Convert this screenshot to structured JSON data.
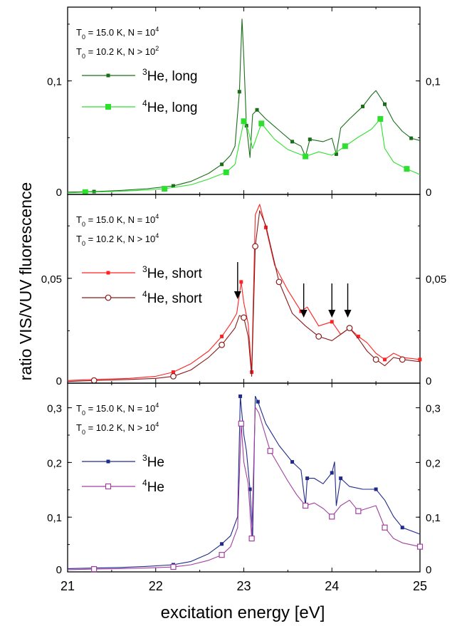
{
  "figure": {
    "ylabel": "ratio VIS/VUV fluorescence",
    "xlabel": "excitation energy [eV]"
  },
  "chart_data": [
    {
      "type": "line",
      "panel": "top",
      "xlim": [
        21,
        25
      ],
      "ylim": [
        0,
        0.165
      ],
      "yticks": [
        0,
        0.1
      ],
      "yticklabels": [
        "0",
        "0,1"
      ],
      "info_lines": [
        "T0 = 15.0 K, N = 10^4",
        "T0 = 10.2 K, N > 10^2"
      ],
      "series": [
        {
          "name": "3He, long",
          "color": "#1a6e1a",
          "marker": "small-square",
          "x": [
            21.0,
            21.3,
            21.6,
            21.9,
            22.2,
            22.4,
            22.6,
            22.75,
            22.85,
            22.9,
            22.95,
            22.98,
            23.0,
            23.03,
            23.07,
            23.1,
            23.15,
            23.25,
            23.4,
            23.55,
            23.65,
            23.7,
            23.75,
            23.9,
            24.0,
            24.05,
            24.1,
            24.2,
            24.35,
            24.45,
            24.5,
            24.6,
            24.7,
            24.8,
            24.9,
            25.0
          ],
          "y": [
            0.0015,
            0.002,
            0.003,
            0.0045,
            0.007,
            0.011,
            0.018,
            0.026,
            0.034,
            0.042,
            0.09,
            0.154,
            0.12,
            0.06,
            0.032,
            0.07,
            0.074,
            0.066,
            0.056,
            0.046,
            0.042,
            0.033,
            0.048,
            0.046,
            0.049,
            0.035,
            0.058,
            0.066,
            0.077,
            0.087,
            0.091,
            0.079,
            0.064,
            0.055,
            0.049,
            0.047
          ]
        },
        {
          "name": "4He, long",
          "color": "#2ee02e",
          "marker": "large-square",
          "x": [
            21.0,
            21.2,
            21.5,
            21.8,
            22.1,
            22.4,
            22.6,
            22.8,
            22.9,
            22.95,
            23.0,
            23.05,
            23.1,
            23.2,
            23.35,
            23.5,
            23.7,
            23.85,
            24.0,
            24.15,
            24.3,
            24.45,
            24.55,
            24.6,
            24.7,
            24.85,
            25.0
          ],
          "y": [
            0.0008,
            0.0015,
            0.002,
            0.003,
            0.0045,
            0.008,
            0.013,
            0.019,
            0.026,
            0.045,
            0.064,
            0.056,
            0.04,
            0.062,
            0.048,
            0.039,
            0.033,
            0.037,
            0.034,
            0.042,
            0.05,
            0.057,
            0.066,
            0.04,
            0.028,
            0.022,
            0.017
          ]
        }
      ]
    },
    {
      "type": "line",
      "panel": "middle",
      "xlim": [
        21,
        25
      ],
      "ylim": [
        0,
        0.09
      ],
      "yticks": [
        0,
        0.05
      ],
      "yticklabels": [
        "0",
        "0,05"
      ],
      "info_lines": [
        "T0 = 15.0 K, N = 10^4",
        "T0 = 10.2 K, N > 10^4"
      ],
      "arrows_x": [
        22.93,
        23.68,
        24.0,
        24.18
      ],
      "series": [
        {
          "name": "3He, short",
          "color": "#ff2222",
          "marker": "small-square",
          "x": [
            21.0,
            21.3,
            21.7,
            22.0,
            22.2,
            22.4,
            22.6,
            22.75,
            22.85,
            22.92,
            22.97,
            23.0,
            23.05,
            23.09,
            23.13,
            23.18,
            23.25,
            23.35,
            23.5,
            23.65,
            23.72,
            23.85,
            24.0,
            24.1,
            24.2,
            24.3,
            24.4,
            24.5,
            24.6,
            24.7,
            24.8,
            25.0
          ],
          "y": [
            0.001,
            0.0015,
            0.002,
            0.003,
            0.005,
            0.009,
            0.015,
            0.022,
            0.028,
            0.033,
            0.048,
            0.038,
            0.028,
            0.005,
            0.08,
            0.085,
            0.074,
            0.056,
            0.044,
            0.034,
            0.036,
            0.027,
            0.029,
            0.023,
            0.026,
            0.022,
            0.019,
            0.014,
            0.011,
            0.014,
            0.012,
            0.011
          ]
        },
        {
          "name": "4He, short",
          "color": "#8b1a1a",
          "marker": "open-circle",
          "x": [
            21.0,
            21.3,
            21.7,
            22.0,
            22.2,
            22.4,
            22.6,
            22.75,
            22.9,
            22.95,
            23.0,
            23.05,
            23.09,
            23.13,
            23.18,
            23.25,
            23.4,
            23.55,
            23.7,
            23.85,
            24.0,
            24.1,
            24.2,
            24.3,
            24.4,
            24.5,
            24.6,
            24.7,
            24.8,
            25.0
          ],
          "y": [
            0.0005,
            0.001,
            0.0015,
            0.002,
            0.003,
            0.006,
            0.012,
            0.018,
            0.026,
            0.032,
            0.031,
            0.022,
            0.003,
            0.065,
            0.082,
            0.075,
            0.048,
            0.033,
            0.027,
            0.022,
            0.02,
            0.023,
            0.026,
            0.021,
            0.015,
            0.011,
            0.008,
            0.012,
            0.011,
            0.01
          ]
        }
      ]
    },
    {
      "type": "line",
      "panel": "bottom",
      "xlim": [
        21,
        25
      ],
      "ylim": [
        0,
        0.345
      ],
      "yticks": [
        0,
        0.1,
        0.2,
        0.3
      ],
      "yticklabels": [
        "0",
        "0,1",
        "0,2",
        "0,3"
      ],
      "info_lines": [
        "T0 = 15.0 K, N = 10^4",
        "T0 = 10.2 K, N > 10^4"
      ],
      "series": [
        {
          "name": "3He",
          "color": "#1f2a8c",
          "marker": "small-square",
          "x": [
            21.0,
            21.3,
            21.6,
            21.9,
            22.2,
            22.4,
            22.6,
            22.75,
            22.85,
            22.93,
            22.96,
            23.0,
            23.03,
            23.07,
            23.1,
            23.13,
            23.16,
            23.25,
            23.4,
            23.55,
            23.65,
            23.7,
            23.72,
            23.8,
            23.9,
            24.0,
            24.03,
            24.05,
            24.1,
            24.2,
            24.35,
            24.5,
            24.6,
            24.7,
            24.8,
            25.0
          ],
          "y": [
            0.005,
            0.006,
            0.007,
            0.009,
            0.012,
            0.018,
            0.032,
            0.05,
            0.065,
            0.1,
            0.32,
            0.25,
            0.22,
            0.15,
            0.06,
            0.32,
            0.31,
            0.27,
            0.23,
            0.2,
            0.185,
            0.12,
            0.17,
            0.17,
            0.16,
            0.18,
            0.2,
            0.12,
            0.17,
            0.155,
            0.15,
            0.15,
            0.13,
            0.1,
            0.08,
            0.068
          ]
        },
        {
          "name": "4He",
          "color": "#a040a0",
          "marker": "open-square",
          "x": [
            21.0,
            21.3,
            21.6,
            21.9,
            22.2,
            22.4,
            22.6,
            22.75,
            22.85,
            22.93,
            22.97,
            23.0,
            23.05,
            23.09,
            23.13,
            23.17,
            23.3,
            23.5,
            23.6,
            23.7,
            23.8,
            23.9,
            24.0,
            24.1,
            24.2,
            24.3,
            24.4,
            24.5,
            24.6,
            24.7,
            24.8,
            25.0
          ],
          "y": [
            0.003,
            0.004,
            0.005,
            0.006,
            0.008,
            0.012,
            0.02,
            0.03,
            0.045,
            0.08,
            0.27,
            0.2,
            0.16,
            0.06,
            0.3,
            0.29,
            0.22,
            0.165,
            0.14,
            0.12,
            0.125,
            0.115,
            0.1,
            0.12,
            0.13,
            0.11,
            0.115,
            0.12,
            0.08,
            0.06,
            0.052,
            0.045
          ]
        }
      ]
    }
  ],
  "x_axis": {
    "ticks": [
      21,
      22,
      23,
      24,
      25
    ],
    "ticklabels": [
      "21",
      "22",
      "23",
      "24",
      "25"
    ]
  }
}
